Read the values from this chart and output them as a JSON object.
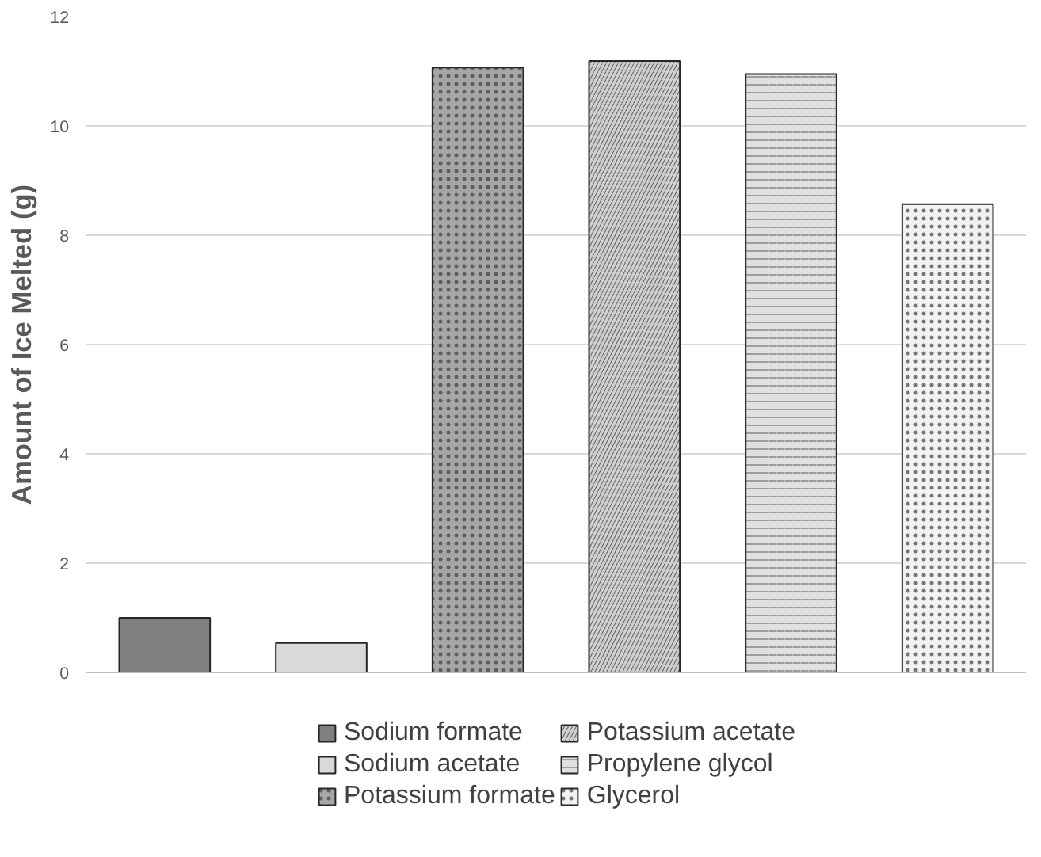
{
  "chart_data": {
    "type": "bar",
    "ylabel": "Amount of Ice Melted (g)",
    "categories": [
      null,
      null,
      null,
      null,
      null,
      null
    ],
    "series": [
      {
        "name": "Sodium formate",
        "color": "#7f7f7f",
        "values": [
          1.0,
          null,
          null,
          null,
          null,
          null
        ]
      },
      {
        "name": "Sodium acetate",
        "color": "#d9d9d9",
        "values": [
          null,
          0.54,
          null,
          null,
          null,
          null
        ]
      },
      {
        "name": "Potassium formate",
        "color": "#a6a6a6",
        "values": [
          null,
          null,
          11.07,
          null,
          null,
          null
        ]
      },
      {
        "name": "Potassium acetate",
        "color": "#d0d0d0",
        "values": [
          null,
          null,
          null,
          11.19,
          null,
          null
        ]
      },
      {
        "name": "Propylene glycol",
        "color": "#e0e0e0",
        "values": [
          null,
          null,
          null,
          null,
          10.95,
          null
        ]
      },
      {
        "name": "Glycerol",
        "color": "#f2f2f2",
        "values": [
          null,
          null,
          null,
          null,
          null,
          8.57
        ]
      }
    ],
    "ylim": [
      0,
      12
    ],
    "yticks": [
      0,
      2,
      4,
      6,
      8,
      10,
      12
    ],
    "grid": "y",
    "legend": "bottom"
  }
}
